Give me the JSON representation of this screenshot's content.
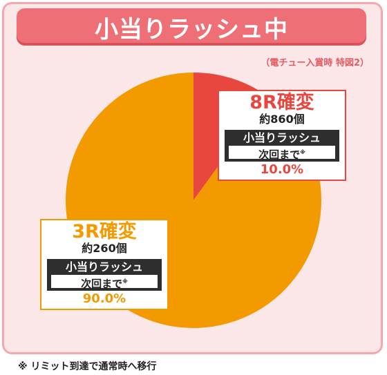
{
  "header": {
    "title": "小当りラッシュ中"
  },
  "note_top": "（電チュー入賞時 特図2）",
  "footnote": "※ リミット到達で通常時へ移行",
  "colors": {
    "red": "#e8473f",
    "orange": "#f29a00",
    "header": "#ee6f75",
    "frame": "#fbe7e8"
  },
  "chart_data": {
    "type": "pie",
    "slices": [
      {
        "label": "8R確変",
        "rounds_note": "約860個",
        "rush": "小当りラッシュ",
        "until": "次回まで",
        "until_mark": "※",
        "value": 10.0,
        "value_text": "10.0%",
        "color": "#e8473f"
      },
      {
        "label": "3R確変",
        "rounds_note": "約260個",
        "rush": "小当りラッシュ",
        "until": "次回まで",
        "until_mark": "※",
        "value": 90.0,
        "value_text": "90.0%",
        "color": "#f29a00"
      }
    ]
  }
}
